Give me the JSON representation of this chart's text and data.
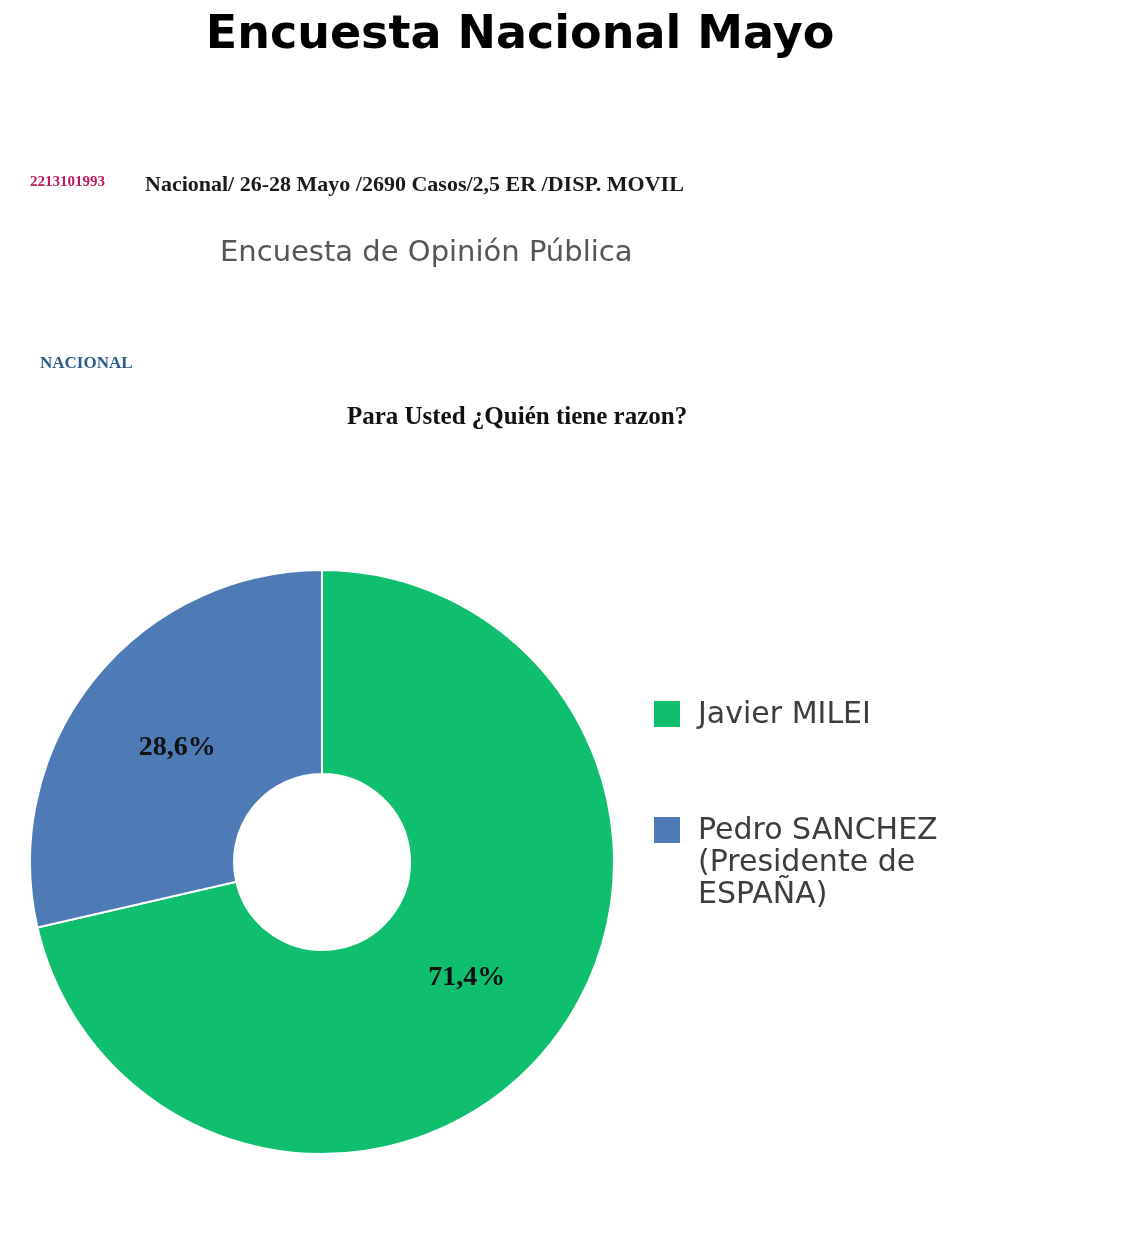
{
  "chart_data": {
    "type": "donut",
    "title": "Para Usted ¿Quién tiene razon?",
    "subtitle": "Encuesta de Opinión Pública",
    "categories": [
      "Javier MILEI",
      "Pedro SANCHEZ (Presidente de ESPAÑA)"
    ],
    "values": [
      71.4,
      28.6
    ],
    "colors": [
      "#0fbf6f",
      "#4e7ab5"
    ],
    "value_labels": [
      "71,4%",
      "28,6%"
    ],
    "legend": "right",
    "annotations": [
      "Encuesta Nacional Mayo",
      "2213101993",
      "Nacional/ 26-28 Mayo /2690 Casos/2,5 ER /DISP. MOVIL",
      "NACIONAL"
    ]
  }
}
